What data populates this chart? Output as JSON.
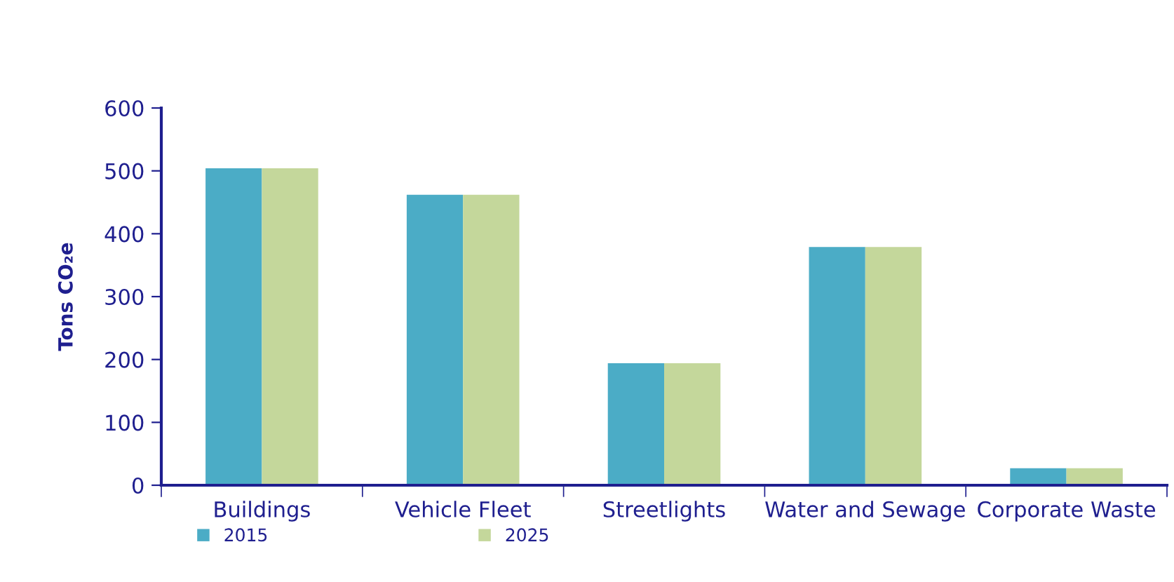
{
  "chart_data": {
    "type": "bar",
    "ylabel": "Tons CO₂e",
    "categories": [
      "Buildings",
      "Vehicle Fleet",
      "Streetlights",
      "Water and Sewage",
      "Corporate Waste"
    ],
    "series": [
      {
        "name": "2015",
        "color": "#4bacc6",
        "values": [
          504,
          462,
          194,
          379,
          27
        ]
      },
      {
        "name": "2025",
        "color": "#c4d79b",
        "values": [
          504,
          462,
          194,
          379,
          27
        ]
      }
    ],
    "ylim": [
      0,
      600
    ],
    "yticks": [
      0,
      100,
      200,
      300,
      400,
      500,
      600
    ],
    "grid": false,
    "legend": "bottom left"
  }
}
